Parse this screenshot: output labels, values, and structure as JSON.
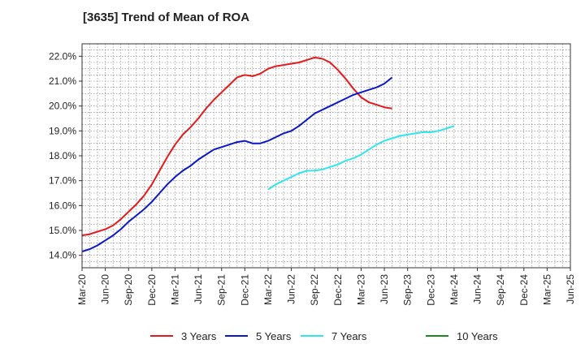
{
  "chart_data": {
    "type": "line",
    "title": "[3635]  Trend of Mean of ROA",
    "y_unit_suffix": "%",
    "ylim": [
      13.5,
      22.5
    ],
    "y_ticks": [
      14.0,
      15.0,
      16.0,
      17.0,
      18.0,
      19.0,
      20.0,
      21.0,
      22.0
    ],
    "x_tick_labels": [
      "Mar-20",
      "Jun-20",
      "Sep-20",
      "Dec-20",
      "Mar-21",
      "Jun-21",
      "Sep-21",
      "Dec-21",
      "Mar-22",
      "Jun-22",
      "Sep-22",
      "Dec-22",
      "Mar-23",
      "Jun-23",
      "Sep-23",
      "Dec-23",
      "Mar-24",
      "Jun-24",
      "Sep-24",
      "Dec-24",
      "Mar-25",
      "Jun-25"
    ],
    "grid": true,
    "legend_position": "bottom",
    "series": [
      {
        "name": "3 Years",
        "color": "#e31a1c",
        "start_index": 0,
        "values": [
          14.8,
          14.85,
          14.95,
          15.05,
          15.2,
          15.45,
          15.75,
          16.05,
          16.4,
          16.85,
          17.4,
          17.95,
          18.45,
          18.85,
          19.15,
          19.5,
          19.9,
          20.25,
          20.55,
          20.85,
          21.15,
          21.25,
          21.2,
          21.3,
          21.5,
          21.6,
          21.65,
          21.7,
          21.75,
          21.85,
          21.95,
          21.9,
          21.75,
          21.45,
          21.1,
          20.7,
          20.35,
          20.15,
          20.05,
          19.95,
          19.9
        ]
      },
      {
        "name": "5 Years",
        "color": "#0a17c9",
        "start_index": 0,
        "values": [
          14.15,
          14.25,
          14.4,
          14.6,
          14.8,
          15.05,
          15.35,
          15.6,
          15.85,
          16.15,
          16.5,
          16.85,
          17.15,
          17.4,
          17.6,
          17.85,
          18.05,
          18.25,
          18.35,
          18.45,
          18.55,
          18.6,
          18.5,
          18.5,
          18.6,
          18.75,
          18.9,
          19.0,
          19.2,
          19.45,
          19.7,
          19.85,
          20.0,
          20.15,
          20.3,
          20.45,
          20.55,
          20.65,
          20.75,
          20.9,
          21.15
        ]
      },
      {
        "name": "7 Years",
        "color": "#2ee6ee",
        "start_index": 24,
        "values": [
          16.65,
          16.85,
          17.0,
          17.15,
          17.3,
          17.4,
          17.4,
          17.45,
          17.55,
          17.65,
          17.8,
          17.9,
          18.05,
          18.25,
          18.45,
          18.6,
          18.7,
          18.8,
          18.85,
          18.9,
          18.95,
          18.95,
          19.0,
          19.1,
          19.2
        ]
      },
      {
        "name": "10 Years",
        "color": "#1a8a1a",
        "start_index": 0,
        "values": []
      }
    ]
  }
}
